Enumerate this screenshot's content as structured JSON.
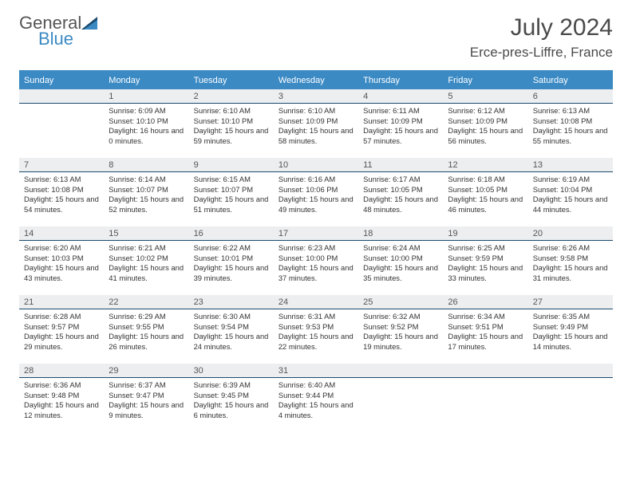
{
  "logo": {
    "text1": "General",
    "text2": "Blue"
  },
  "title": "July 2024",
  "location": "Erce-pres-Liffre, France",
  "colors": {
    "accent": "#3b8ac4",
    "headerText": "#ffffff",
    "dayNumBg": "#eceef0",
    "dayNumBorder": "#1a4a6e",
    "bodyText": "#333333",
    "titleText": "#4a4a4a"
  },
  "dayHeaders": [
    "Sunday",
    "Monday",
    "Tuesday",
    "Wednesday",
    "Thursday",
    "Friday",
    "Saturday"
  ],
  "weeks": [
    [
      {
        "n": "",
        "sr": "",
        "ss": "",
        "dl": ""
      },
      {
        "n": "1",
        "sr": "6:09 AM",
        "ss": "10:10 PM",
        "dl": "16 hours and 0 minutes."
      },
      {
        "n": "2",
        "sr": "6:10 AM",
        "ss": "10:10 PM",
        "dl": "15 hours and 59 minutes."
      },
      {
        "n": "3",
        "sr": "6:10 AM",
        "ss": "10:09 PM",
        "dl": "15 hours and 58 minutes."
      },
      {
        "n": "4",
        "sr": "6:11 AM",
        "ss": "10:09 PM",
        "dl": "15 hours and 57 minutes."
      },
      {
        "n": "5",
        "sr": "6:12 AM",
        "ss": "10:09 PM",
        "dl": "15 hours and 56 minutes."
      },
      {
        "n": "6",
        "sr": "6:13 AM",
        "ss": "10:08 PM",
        "dl": "15 hours and 55 minutes."
      }
    ],
    [
      {
        "n": "7",
        "sr": "6:13 AM",
        "ss": "10:08 PM",
        "dl": "15 hours and 54 minutes."
      },
      {
        "n": "8",
        "sr": "6:14 AM",
        "ss": "10:07 PM",
        "dl": "15 hours and 52 minutes."
      },
      {
        "n": "9",
        "sr": "6:15 AM",
        "ss": "10:07 PM",
        "dl": "15 hours and 51 minutes."
      },
      {
        "n": "10",
        "sr": "6:16 AM",
        "ss": "10:06 PM",
        "dl": "15 hours and 49 minutes."
      },
      {
        "n": "11",
        "sr": "6:17 AM",
        "ss": "10:05 PM",
        "dl": "15 hours and 48 minutes."
      },
      {
        "n": "12",
        "sr": "6:18 AM",
        "ss": "10:05 PM",
        "dl": "15 hours and 46 minutes."
      },
      {
        "n": "13",
        "sr": "6:19 AM",
        "ss": "10:04 PM",
        "dl": "15 hours and 44 minutes."
      }
    ],
    [
      {
        "n": "14",
        "sr": "6:20 AM",
        "ss": "10:03 PM",
        "dl": "15 hours and 43 minutes."
      },
      {
        "n": "15",
        "sr": "6:21 AM",
        "ss": "10:02 PM",
        "dl": "15 hours and 41 minutes."
      },
      {
        "n": "16",
        "sr": "6:22 AM",
        "ss": "10:01 PM",
        "dl": "15 hours and 39 minutes."
      },
      {
        "n": "17",
        "sr": "6:23 AM",
        "ss": "10:00 PM",
        "dl": "15 hours and 37 minutes."
      },
      {
        "n": "18",
        "sr": "6:24 AM",
        "ss": "10:00 PM",
        "dl": "15 hours and 35 minutes."
      },
      {
        "n": "19",
        "sr": "6:25 AM",
        "ss": "9:59 PM",
        "dl": "15 hours and 33 minutes."
      },
      {
        "n": "20",
        "sr": "6:26 AM",
        "ss": "9:58 PM",
        "dl": "15 hours and 31 minutes."
      }
    ],
    [
      {
        "n": "21",
        "sr": "6:28 AM",
        "ss": "9:57 PM",
        "dl": "15 hours and 29 minutes."
      },
      {
        "n": "22",
        "sr": "6:29 AM",
        "ss": "9:55 PM",
        "dl": "15 hours and 26 minutes."
      },
      {
        "n": "23",
        "sr": "6:30 AM",
        "ss": "9:54 PM",
        "dl": "15 hours and 24 minutes."
      },
      {
        "n": "24",
        "sr": "6:31 AM",
        "ss": "9:53 PM",
        "dl": "15 hours and 22 minutes."
      },
      {
        "n": "25",
        "sr": "6:32 AM",
        "ss": "9:52 PM",
        "dl": "15 hours and 19 minutes."
      },
      {
        "n": "26",
        "sr": "6:34 AM",
        "ss": "9:51 PM",
        "dl": "15 hours and 17 minutes."
      },
      {
        "n": "27",
        "sr": "6:35 AM",
        "ss": "9:49 PM",
        "dl": "15 hours and 14 minutes."
      }
    ],
    [
      {
        "n": "28",
        "sr": "6:36 AM",
        "ss": "9:48 PM",
        "dl": "15 hours and 12 minutes."
      },
      {
        "n": "29",
        "sr": "6:37 AM",
        "ss": "9:47 PM",
        "dl": "15 hours and 9 minutes."
      },
      {
        "n": "30",
        "sr": "6:39 AM",
        "ss": "9:45 PM",
        "dl": "15 hours and 6 minutes."
      },
      {
        "n": "31",
        "sr": "6:40 AM",
        "ss": "9:44 PM",
        "dl": "15 hours and 4 minutes."
      },
      {
        "n": "",
        "sr": "",
        "ss": "",
        "dl": ""
      },
      {
        "n": "",
        "sr": "",
        "ss": "",
        "dl": ""
      },
      {
        "n": "",
        "sr": "",
        "ss": "",
        "dl": ""
      }
    ]
  ],
  "labels": {
    "sunrise": "Sunrise:",
    "sunset": "Sunset:",
    "daylight": "Daylight:"
  }
}
